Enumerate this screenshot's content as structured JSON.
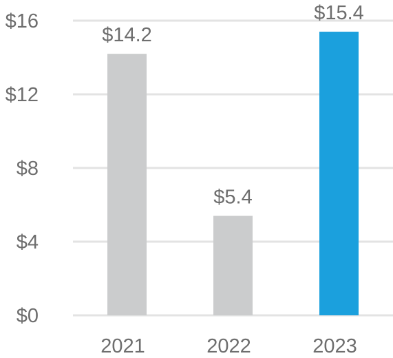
{
  "chart_data": {
    "type": "bar",
    "categories": [
      "2021",
      "2022",
      "2023"
    ],
    "values": [
      14.2,
      5.4,
      15.4
    ],
    "value_labels": [
      "$14.2",
      "$5.4",
      "$15.4"
    ],
    "y_ticks": [
      0,
      4,
      8,
      12,
      16
    ],
    "y_tick_labels": [
      "$0",
      "$4",
      "$8",
      "$12",
      "$16"
    ],
    "ylim": [
      0,
      16
    ],
    "grid": true,
    "legend": "none",
    "title": "",
    "xlabel": "",
    "ylabel": ""
  },
  "colors": {
    "bar_default": "#cbcccd",
    "bar_highlight": "#1ba0dd",
    "gridline": "#e3e3e3",
    "text": "#6e6e6e"
  },
  "highlight_index": 2
}
